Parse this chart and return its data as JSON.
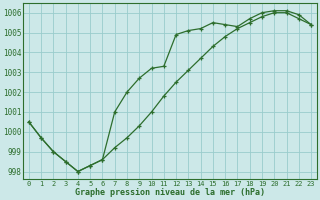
{
  "line1_x": [
    0,
    1,
    2,
    3,
    4,
    5,
    6,
    7,
    8,
    9,
    10,
    11,
    12,
    13,
    14,
    15,
    16,
    17,
    18,
    19,
    20,
    21,
    22,
    23
  ],
  "line1_y": [
    1000.5,
    999.7,
    999.0,
    998.5,
    998.0,
    998.3,
    998.6,
    1001.0,
    1002.0,
    1002.7,
    1003.2,
    1003.3,
    1004.9,
    1005.1,
    1005.2,
    1005.5,
    1005.4,
    1005.3,
    1005.7,
    1006.0,
    1006.1,
    1006.1,
    1005.9,
    1005.4
  ],
  "line2_x": [
    0,
    1,
    2,
    3,
    4,
    5,
    6,
    7,
    8,
    9,
    10,
    11,
    12,
    13,
    14,
    15,
    16,
    17,
    18,
    19,
    20,
    21,
    22,
    23
  ],
  "line2_y": [
    1000.5,
    999.7,
    999.0,
    998.5,
    998.0,
    998.3,
    998.6,
    999.2,
    999.7,
    1000.3,
    1001.0,
    1001.8,
    1002.5,
    1003.1,
    1003.7,
    1004.3,
    1004.8,
    1005.2,
    1005.5,
    1005.8,
    1006.0,
    1006.0,
    1005.7,
    1005.4
  ],
  "background_color": "#cce8e8",
  "line_color": "#2d6e2d",
  "grid_color": "#99cccc",
  "xlabel": "Graphe pression niveau de la mer (hPa)",
  "xlim_min": -0.5,
  "xlim_max": 23.5,
  "ylim_min": 997.6,
  "ylim_max": 1006.5,
  "yticks": [
    998,
    999,
    1000,
    1001,
    1002,
    1003,
    1004,
    1005,
    1006
  ],
  "xticks": [
    0,
    1,
    2,
    3,
    4,
    5,
    6,
    7,
    8,
    9,
    10,
    11,
    12,
    13,
    14,
    15,
    16,
    17,
    18,
    19,
    20,
    21,
    22,
    23
  ],
  "xtick_labels": [
    "0",
    "1",
    "2",
    "3",
    "4",
    "5",
    "6",
    "7",
    "8",
    "9",
    "10",
    "11",
    "12",
    "13",
    "14",
    "15",
    "16",
    "17",
    "18",
    "19",
    "20",
    "21",
    "22",
    "23"
  ]
}
